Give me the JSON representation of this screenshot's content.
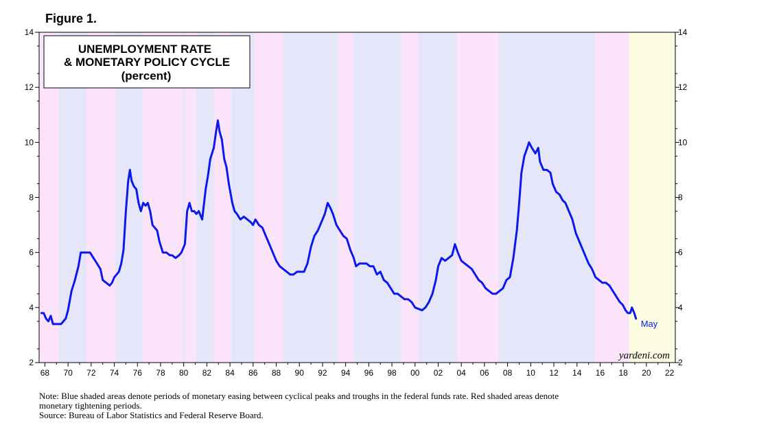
{
  "figure_label": "Figure 1.",
  "chart_data": {
    "type": "line",
    "title": [
      "UNEMPLOYMENT RATE",
      "& MONETARY POLICY CYCLE",
      "(percent)"
    ],
    "xlabel": "",
    "ylabel": "",
    "x_range": [
      1967.5,
      2022.5
    ],
    "ylim": [
      2,
      14
    ],
    "y_ticks": [
      2,
      4,
      6,
      8,
      10,
      12,
      14
    ],
    "x_ticks": [
      {
        "year": 1968,
        "label": "68"
      },
      {
        "year": 1970,
        "label": "70"
      },
      {
        "year": 1972,
        "label": "72"
      },
      {
        "year": 1974,
        "label": "74"
      },
      {
        "year": 1976,
        "label": "76"
      },
      {
        "year": 1978,
        "label": "78"
      },
      {
        "year": 1980,
        "label": "80"
      },
      {
        "year": 1982,
        "label": "82"
      },
      {
        "year": 1984,
        "label": "84"
      },
      {
        "year": 1986,
        "label": "86"
      },
      {
        "year": 1988,
        "label": "88"
      },
      {
        "year": 1990,
        "label": "90"
      },
      {
        "year": 1992,
        "label": "92"
      },
      {
        "year": 1994,
        "label": "94"
      },
      {
        "year": 1996,
        "label": "96"
      },
      {
        "year": 1998,
        "label": "98"
      },
      {
        "year": 2000,
        "label": "00"
      },
      {
        "year": 2002,
        "label": "02"
      },
      {
        "year": 2004,
        "label": "04"
      },
      {
        "year": 2006,
        "label": "06"
      },
      {
        "year": 2008,
        "label": "08"
      },
      {
        "year": 2010,
        "label": "10"
      },
      {
        "year": 2012,
        "label": "12"
      },
      {
        "year": 2014,
        "label": "14"
      },
      {
        "year": 2016,
        "label": "16"
      },
      {
        "year": 2018,
        "label": "18"
      },
      {
        "year": 2020,
        "label": "20"
      },
      {
        "year": 2022,
        "label": "22"
      }
    ],
    "shaded_periods": [
      {
        "start": 1967.5,
        "end": 1969.2,
        "type": "tightening"
      },
      {
        "start": 1969.2,
        "end": 1971.6,
        "type": "easing"
      },
      {
        "start": 1971.6,
        "end": 1974.1,
        "type": "tightening"
      },
      {
        "start": 1974.1,
        "end": 1976.5,
        "type": "easing"
      },
      {
        "start": 1976.5,
        "end": 1979.9,
        "type": "tightening"
      },
      {
        "start": 1979.9,
        "end": 1980.1,
        "type": "easing"
      },
      {
        "start": 1980.1,
        "end": 1981.1,
        "type": "tightening"
      },
      {
        "start": 1981.1,
        "end": 1982.6,
        "type": "easing"
      },
      {
        "start": 1982.6,
        "end": 1984.1,
        "type": "tightening"
      },
      {
        "start": 1984.1,
        "end": 1986.1,
        "type": "easing"
      },
      {
        "start": 1986.1,
        "end": 1988.6,
        "type": "tightening"
      },
      {
        "start": 1988.6,
        "end": 1993.3,
        "type": "easing"
      },
      {
        "start": 1993.3,
        "end": 1994.7,
        "type": "tightening"
      },
      {
        "start": 1994.7,
        "end": 1998.8,
        "type": "easing"
      },
      {
        "start": 1998.8,
        "end": 2000.3,
        "type": "tightening"
      },
      {
        "start": 2000.3,
        "end": 2003.6,
        "type": "easing"
      },
      {
        "start": 2003.6,
        "end": 2007.2,
        "type": "tightening"
      },
      {
        "start": 2007.2,
        "end": 2015.5,
        "type": "easing"
      },
      {
        "start": 2015.5,
        "end": 2018.5,
        "type": "tightening"
      },
      {
        "start": 2018.5,
        "end": 2022.5,
        "type": "forecast"
      }
    ],
    "series": [
      {
        "name": "Unemployment Rate",
        "color": "#0a18f0",
        "points": [
          [
            1967.7,
            3.8
          ],
          [
            1967.9,
            3.8
          ],
          [
            1968.1,
            3.6
          ],
          [
            1968.3,
            3.5
          ],
          [
            1968.5,
            3.7
          ],
          [
            1968.7,
            3.4
          ],
          [
            1969.0,
            3.4
          ],
          [
            1969.4,
            3.4
          ],
          [
            1969.6,
            3.5
          ],
          [
            1969.8,
            3.6
          ],
          [
            1970.0,
            3.9
          ],
          [
            1970.3,
            4.6
          ],
          [
            1970.6,
            5.0
          ],
          [
            1970.9,
            5.5
          ],
          [
            1971.1,
            6.0
          ],
          [
            1971.4,
            6.0
          ],
          [
            1971.7,
            6.0
          ],
          [
            1971.9,
            6.0
          ],
          [
            1972.2,
            5.8
          ],
          [
            1972.5,
            5.6
          ],
          [
            1972.8,
            5.4
          ],
          [
            1973.0,
            5.0
          ],
          [
            1973.3,
            4.9
          ],
          [
            1973.6,
            4.8
          ],
          [
            1973.8,
            4.9
          ],
          [
            1974.0,
            5.1
          ],
          [
            1974.2,
            5.2
          ],
          [
            1974.4,
            5.3
          ],
          [
            1974.6,
            5.6
          ],
          [
            1974.8,
            6.1
          ],
          [
            1975.0,
            7.5
          ],
          [
            1975.2,
            8.6
          ],
          [
            1975.35,
            9.0
          ],
          [
            1975.5,
            8.6
          ],
          [
            1975.7,
            8.4
          ],
          [
            1975.9,
            8.3
          ],
          [
            1976.1,
            7.8
          ],
          [
            1976.3,
            7.5
          ],
          [
            1976.5,
            7.8
          ],
          [
            1976.7,
            7.7
          ],
          [
            1976.9,
            7.8
          ],
          [
            1977.1,
            7.5
          ],
          [
            1977.3,
            7.0
          ],
          [
            1977.5,
            6.9
          ],
          [
            1977.7,
            6.8
          ],
          [
            1977.9,
            6.4
          ],
          [
            1978.2,
            6.0
          ],
          [
            1978.5,
            6.0
          ],
          [
            1978.8,
            5.9
          ],
          [
            1979.0,
            5.9
          ],
          [
            1979.3,
            5.8
          ],
          [
            1979.6,
            5.9
          ],
          [
            1979.8,
            6.0
          ],
          [
            1980.1,
            6.3
          ],
          [
            1980.3,
            7.5
          ],
          [
            1980.5,
            7.8
          ],
          [
            1980.7,
            7.5
          ],
          [
            1980.9,
            7.5
          ],
          [
            1981.1,
            7.4
          ],
          [
            1981.3,
            7.5
          ],
          [
            1981.6,
            7.2
          ],
          [
            1981.9,
            8.3
          ],
          [
            1982.1,
            8.8
          ],
          [
            1982.3,
            9.4
          ],
          [
            1982.6,
            9.8
          ],
          [
            1982.8,
            10.4
          ],
          [
            1982.95,
            10.8
          ],
          [
            1983.1,
            10.4
          ],
          [
            1983.3,
            10.1
          ],
          [
            1983.5,
            9.4
          ],
          [
            1983.7,
            9.1
          ],
          [
            1983.9,
            8.5
          ],
          [
            1984.2,
            7.8
          ],
          [
            1984.4,
            7.5
          ],
          [
            1984.6,
            7.4
          ],
          [
            1984.9,
            7.2
          ],
          [
            1985.2,
            7.3
          ],
          [
            1985.5,
            7.2
          ],
          [
            1985.8,
            7.1
          ],
          [
            1986.0,
            7.0
          ],
          [
            1986.2,
            7.2
          ],
          [
            1986.5,
            7.0
          ],
          [
            1986.8,
            6.9
          ],
          [
            1987.1,
            6.6
          ],
          [
            1987.4,
            6.3
          ],
          [
            1987.7,
            6.0
          ],
          [
            1988.0,
            5.7
          ],
          [
            1988.3,
            5.5
          ],
          [
            1988.6,
            5.4
          ],
          [
            1988.9,
            5.3
          ],
          [
            1989.2,
            5.2
          ],
          [
            1989.5,
            5.2
          ],
          [
            1989.8,
            5.3
          ],
          [
            1990.1,
            5.3
          ],
          [
            1990.4,
            5.3
          ],
          [
            1990.7,
            5.6
          ],
          [
            1991.0,
            6.2
          ],
          [
            1991.3,
            6.6
          ],
          [
            1991.6,
            6.8
          ],
          [
            1991.9,
            7.1
          ],
          [
            1992.2,
            7.4
          ],
          [
            1992.45,
            7.8
          ],
          [
            1992.7,
            7.6
          ],
          [
            1992.9,
            7.4
          ],
          [
            1993.2,
            7.0
          ],
          [
            1993.5,
            6.8
          ],
          [
            1993.8,
            6.6
          ],
          [
            1994.1,
            6.5
          ],
          [
            1994.4,
            6.1
          ],
          [
            1994.7,
            5.8
          ],
          [
            1994.9,
            5.5
          ],
          [
            1995.2,
            5.6
          ],
          [
            1995.5,
            5.6
          ],
          [
            1995.8,
            5.6
          ],
          [
            1996.1,
            5.5
          ],
          [
            1996.4,
            5.5
          ],
          [
            1996.7,
            5.2
          ],
          [
            1997.0,
            5.3
          ],
          [
            1997.3,
            5.0
          ],
          [
            1997.6,
            4.9
          ],
          [
            1997.9,
            4.7
          ],
          [
            1998.2,
            4.5
          ],
          [
            1998.5,
            4.5
          ],
          [
            1998.8,
            4.4
          ],
          [
            1999.1,
            4.3
          ],
          [
            1999.4,
            4.3
          ],
          [
            1999.7,
            4.2
          ],
          [
            2000.0,
            4.0
          ],
          [
            2000.3,
            3.95
          ],
          [
            2000.6,
            3.9
          ],
          [
            2000.9,
            4.0
          ],
          [
            2001.2,
            4.2
          ],
          [
            2001.5,
            4.5
          ],
          [
            2001.8,
            5.0
          ],
          [
            2002.0,
            5.5
          ],
          [
            2002.3,
            5.8
          ],
          [
            2002.6,
            5.7
          ],
          [
            2002.9,
            5.8
          ],
          [
            2003.2,
            5.9
          ],
          [
            2003.45,
            6.3
          ],
          [
            2003.7,
            6.0
          ],
          [
            2004.0,
            5.7
          ],
          [
            2004.3,
            5.6
          ],
          [
            2004.6,
            5.5
          ],
          [
            2004.9,
            5.4
          ],
          [
            2005.2,
            5.2
          ],
          [
            2005.5,
            5.0
          ],
          [
            2005.8,
            4.9
          ],
          [
            2006.1,
            4.7
          ],
          [
            2006.4,
            4.6
          ],
          [
            2006.7,
            4.5
          ],
          [
            2007.0,
            4.5
          ],
          [
            2007.3,
            4.6
          ],
          [
            2007.6,
            4.7
          ],
          [
            2007.9,
            5.0
          ],
          [
            2008.2,
            5.1
          ],
          [
            2008.5,
            5.8
          ],
          [
            2008.8,
            6.8
          ],
          [
            2009.0,
            7.8
          ],
          [
            2009.2,
            8.9
          ],
          [
            2009.45,
            9.5
          ],
          [
            2009.7,
            9.8
          ],
          [
            2009.85,
            10.0
          ],
          [
            2010.1,
            9.8
          ],
          [
            2010.4,
            9.6
          ],
          [
            2010.65,
            9.8
          ],
          [
            2010.8,
            9.3
          ],
          [
            2011.1,
            9.0
          ],
          [
            2011.4,
            9.0
          ],
          [
            2011.7,
            8.9
          ],
          [
            2011.9,
            8.5
          ],
          [
            2012.2,
            8.2
          ],
          [
            2012.5,
            8.1
          ],
          [
            2012.75,
            7.9
          ],
          [
            2013.0,
            7.8
          ],
          [
            2013.3,
            7.5
          ],
          [
            2013.6,
            7.2
          ],
          [
            2013.9,
            6.7
          ],
          [
            2014.2,
            6.4
          ],
          [
            2014.5,
            6.1
          ],
          [
            2014.8,
            5.8
          ],
          [
            2015.0,
            5.6
          ],
          [
            2015.3,
            5.4
          ],
          [
            2015.6,
            5.1
          ],
          [
            2015.9,
            5.0
          ],
          [
            2016.2,
            4.9
          ],
          [
            2016.5,
            4.9
          ],
          [
            2016.8,
            4.8
          ],
          [
            2017.1,
            4.6
          ],
          [
            2017.4,
            4.4
          ],
          [
            2017.7,
            4.2
          ],
          [
            2017.95,
            4.1
          ],
          [
            2018.2,
            3.9
          ],
          [
            2018.4,
            3.8
          ],
          [
            2018.6,
            3.8
          ],
          [
            2018.75,
            4.0
          ],
          [
            2018.95,
            3.8
          ],
          [
            2019.1,
            3.6
          ]
        ]
      }
    ],
    "annotation": "May",
    "watermark": "yardeni.com",
    "colors": {
      "easing": "#e6e6fa",
      "tightening": "#fbe3f9",
      "forecast": "#fcfce0",
      "line": "#0a18f0"
    }
  },
  "notes": {
    "line1": "Note: Blue shaded areas denote periods of monetary easing between cyclical peaks and troughs in the federal funds rate. Red shaded areas denote",
    "line2": "monetary tightening periods.",
    "source": "Source: Bureau of Labor Statistics and Federal Reserve Board."
  }
}
